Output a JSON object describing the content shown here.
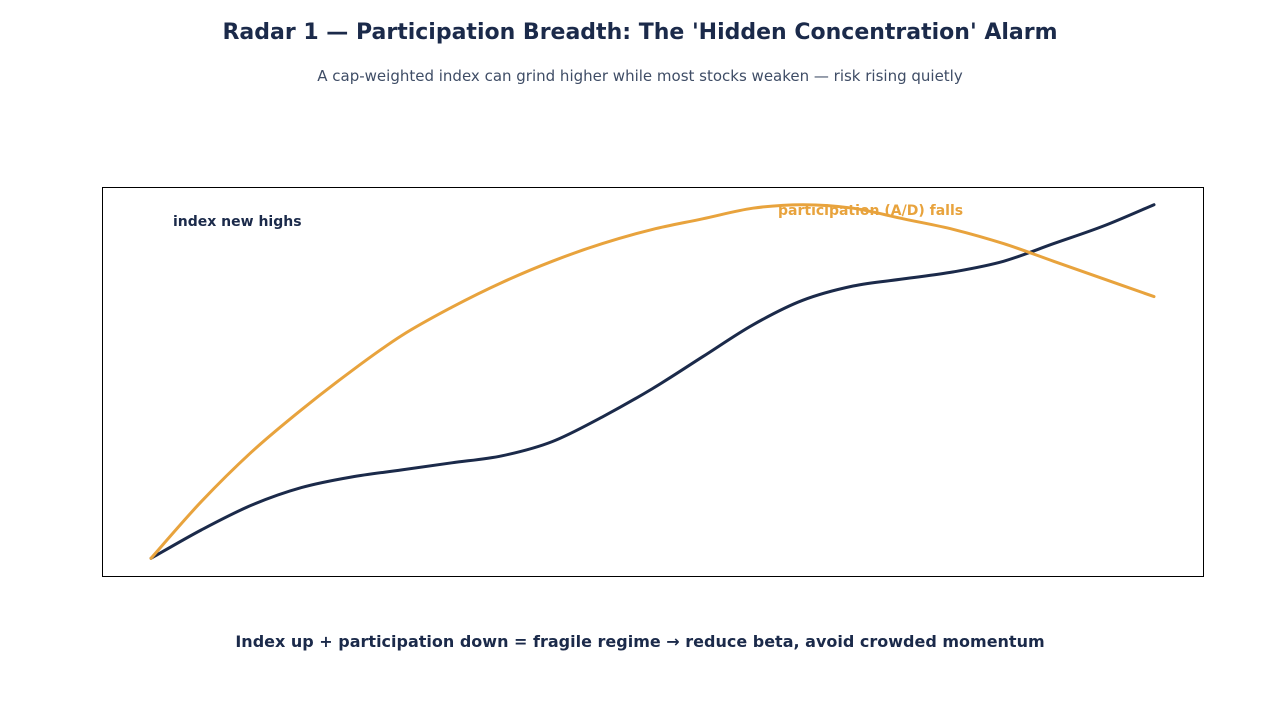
{
  "title": "Radar 1 — Participation Breadth: The 'Hidden Concentration' Alarm",
  "subtitle": "A cap-weighted index can grind higher while most stocks weaken — risk rising quietly",
  "footer": "Index up + participation down = fragile regime → reduce beta, avoid crowded momentum",
  "chart_data": {
    "type": "line",
    "title": "",
    "xlabel": "",
    "ylabel": "",
    "xlim": [
      0,
      1
    ],
    "ylim": [
      -0.05,
      1.05
    ],
    "grid": false,
    "legend": "none",
    "annotations": {
      "index": "index new highs",
      "participation": "participation (A/D) falls"
    },
    "series": [
      {
        "key": "index",
        "color": "#1b2a4a",
        "x": [
          0,
          0.05,
          0.1,
          0.15,
          0.2,
          0.25,
          0.3,
          0.35,
          0.4,
          0.45,
          0.5,
          0.55,
          0.6,
          0.65,
          0.7,
          0.75,
          0.8,
          0.85,
          0.9,
          0.95,
          1.0
        ],
        "y": [
          0.0,
          0.08,
          0.15,
          0.2,
          0.23,
          0.25,
          0.27,
          0.29,
          0.33,
          0.4,
          0.48,
          0.57,
          0.66,
          0.73,
          0.77,
          0.79,
          0.81,
          0.84,
          0.89,
          0.94,
          1.0
        ]
      },
      {
        "key": "participation",
        "color": "#e8a33d",
        "x": [
          0,
          0.05,
          0.1,
          0.15,
          0.2,
          0.25,
          0.3,
          0.35,
          0.4,
          0.45,
          0.5,
          0.55,
          0.6,
          0.65,
          0.7,
          0.75,
          0.8,
          0.85,
          0.9,
          0.95,
          1.0
        ],
        "y": [
          0.0,
          0.16,
          0.3,
          0.42,
          0.53,
          0.63,
          0.71,
          0.78,
          0.84,
          0.89,
          0.93,
          0.96,
          0.99,
          1.0,
          0.99,
          0.96,
          0.93,
          0.89,
          0.84,
          0.79,
          0.74
        ]
      }
    ]
  }
}
